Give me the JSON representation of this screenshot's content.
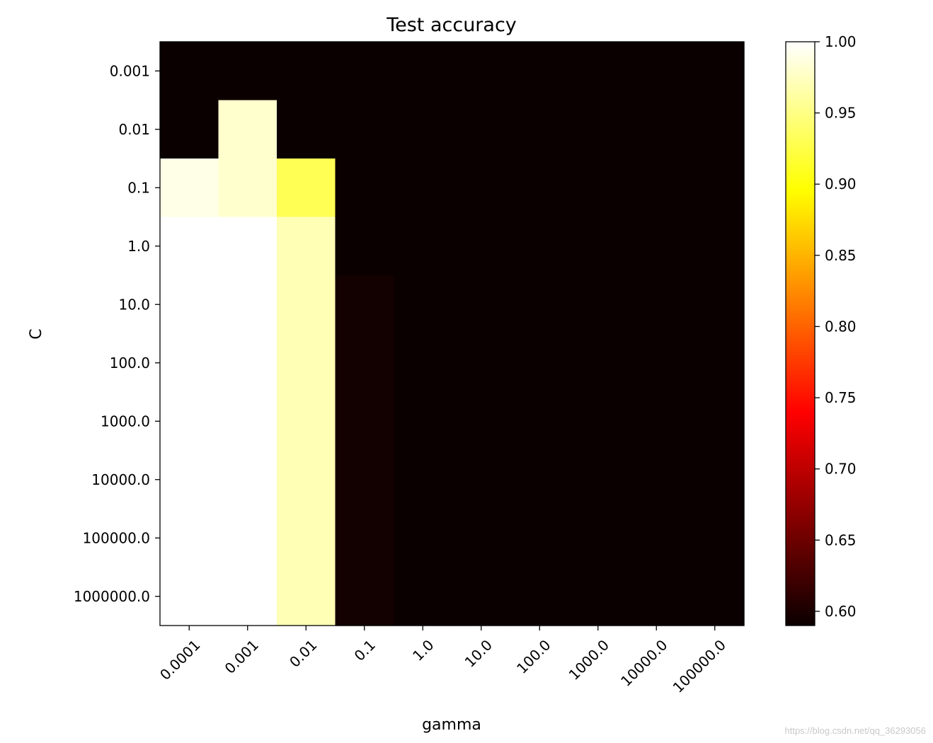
{
  "chart_data": {
    "type": "heatmap",
    "title": "Test accuracy",
    "xlabel": "gamma",
    "ylabel": "C",
    "x_categories": [
      "0.0001",
      "0.001",
      "0.01",
      "0.1",
      "1.0",
      "10.0",
      "100.0",
      "1000.0",
      "10000.0",
      "100000.0"
    ],
    "y_categories": [
      "0.001",
      "0.01",
      "0.1",
      "1.0",
      "10.0",
      "100.0",
      "1000.0",
      "10000.0",
      "100000.0",
      "1000000.0"
    ],
    "values": [
      [
        0.59,
        0.59,
        0.59,
        0.59,
        0.59,
        0.59,
        0.59,
        0.59,
        0.59,
        0.59
      ],
      [
        0.59,
        0.98,
        0.59,
        0.59,
        0.59,
        0.59,
        0.59,
        0.59,
        0.59,
        0.59
      ],
      [
        0.99,
        0.98,
        0.93,
        0.59,
        0.59,
        0.59,
        0.59,
        0.59,
        0.59,
        0.59
      ],
      [
        1.0,
        1.0,
        0.97,
        0.59,
        0.59,
        0.59,
        0.59,
        0.59,
        0.59,
        0.59
      ],
      [
        1.0,
        1.0,
        0.97,
        0.595,
        0.59,
        0.59,
        0.59,
        0.59,
        0.59,
        0.59
      ],
      [
        1.0,
        1.0,
        0.97,
        0.595,
        0.59,
        0.59,
        0.59,
        0.59,
        0.59,
        0.59
      ],
      [
        1.0,
        1.0,
        0.97,
        0.595,
        0.59,
        0.59,
        0.59,
        0.59,
        0.59,
        0.59
      ],
      [
        1.0,
        1.0,
        0.97,
        0.595,
        0.59,
        0.59,
        0.59,
        0.59,
        0.59,
        0.59
      ],
      [
        1.0,
        1.0,
        0.97,
        0.595,
        0.59,
        0.59,
        0.59,
        0.59,
        0.59,
        0.59
      ],
      [
        1.0,
        1.0,
        0.97,
        0.595,
        0.59,
        0.59,
        0.59,
        0.59,
        0.59,
        0.59
      ]
    ],
    "colormap": "hot",
    "vmin": 0.59,
    "vmax": 1.0,
    "colorbar_ticks": [
      "0.60",
      "0.65",
      "0.70",
      "0.75",
      "0.80",
      "0.85",
      "0.90",
      "0.95",
      "1.00"
    ],
    "grid": false,
    "x_tick_rotation": "45 degrees"
  },
  "watermark": "https://blog.csdn.net/qq_36293056"
}
